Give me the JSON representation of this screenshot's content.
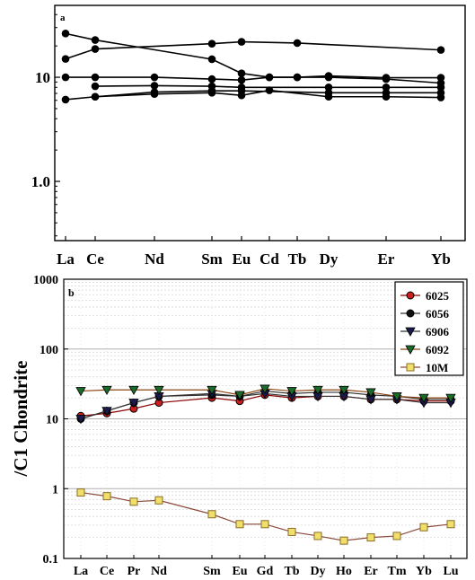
{
  "chart_data": [
    {
      "type": "line",
      "panel_label": "a",
      "categories": [
        "La",
        "Ce",
        "Nd",
        "Sm",
        "Eu",
        "Cd",
        "Tb",
        "Dy",
        "Er",
        "Yb"
      ],
      "y_scale": "log",
      "ylim": [
        0.27,
        49
      ],
      "y_ticks": [
        "10",
        "1.0"
      ],
      "y_tick_values": [
        10,
        1
      ],
      "grid": false,
      "legend": "none",
      "series": [
        {
          "points": [
            [
              "La",
              26.3
            ],
            [
              "Ce",
              22.8
            ],
            [
              "Sm",
              14.9
            ],
            [
              "Eu",
              10.9
            ],
            [
              "Cd",
              10.0
            ],
            [
              "Tb",
              10.0
            ],
            [
              "Dy",
              10.0
            ],
            [
              "Er",
              9.6
            ],
            [
              "Yb",
              8.8
            ]
          ]
        },
        {
          "points": [
            [
              "La",
              15.0
            ],
            [
              "Ce",
              18.7
            ],
            [
              "Sm",
              21.0
            ],
            [
              "Eu",
              21.9
            ],
            [
              "Tb",
              21.3
            ],
            [
              "Yb",
              18.3
            ]
          ]
        },
        {
          "points": [
            [
              "La",
              10.0
            ],
            [
              "Ce",
              10.0
            ],
            [
              "Nd",
              10.0
            ],
            [
              "Sm",
              9.6
            ],
            [
              "Eu",
              9.4
            ],
            [
              "Cd",
              10.0
            ],
            [
              "Tb",
              10.0
            ],
            [
              "Dy",
              10.3
            ],
            [
              "Er",
              9.9
            ],
            [
              "Yb",
              9.9
            ]
          ]
        },
        {
          "points": [
            [
              "Ce",
              8.2
            ],
            [
              "Nd",
              8.3
            ],
            [
              "Sm",
              8.2
            ],
            [
              "Eu",
              8.0
            ],
            [
              "Dy",
              8.0
            ],
            [
              "Er",
              8.0
            ],
            [
              "Yb",
              8.0
            ]
          ]
        },
        {
          "points": [
            [
              "La",
              6.1
            ],
            [
              "Ce",
              6.5
            ],
            [
              "Nd",
              6.9
            ],
            [
              "Sm",
              7.1
            ],
            [
              "Eu",
              6.7
            ],
            [
              "Cd",
              7.5
            ],
            [
              "Dy",
              6.5
            ],
            [
              "Er",
              6.5
            ],
            [
              "Yb",
              6.4
            ]
          ]
        },
        {
          "points": [
            [
              "Ce",
              6.5
            ],
            [
              "Nd",
              7.2
            ],
            [
              "Sm",
              7.4
            ],
            [
              "Eu",
              7.4
            ],
            [
              "Dy",
              7.1
            ],
            [
              "Er",
              7.1
            ],
            [
              "Yb",
              7.1
            ]
          ]
        }
      ]
    },
    {
      "type": "line",
      "panel_label": "b",
      "ylabel": "/C1 Chondrite",
      "categories": [
        "La",
        "Ce",
        "Pr",
        "Nd",
        "Sm",
        "Eu",
        "Gd",
        "Tb",
        "Dy",
        "Ho",
        "Er",
        "Tm",
        "Yb",
        "Lu"
      ],
      "y_scale": "log",
      "ylim": [
        0.1,
        1000
      ],
      "y_ticks": [
        "1000",
        "100",
        "10",
        "1",
        "0.1"
      ],
      "y_tick_values": [
        1000,
        100,
        10,
        1,
        0.1
      ],
      "grid": true,
      "legend": "top-right",
      "series": [
        {
          "name": "6025",
          "color": "#cc1e1e",
          "marker": "circle",
          "line_color": "#8b0000",
          "values": [
            11,
            12,
            14,
            17,
            20,
            18,
            22,
            20,
            21,
            21,
            19,
            19,
            18,
            18
          ]
        },
        {
          "name": "6056",
          "color": "#111111",
          "marker": "circle",
          "line_color": "#333333",
          "values": [
            10,
            13,
            17,
            21,
            22,
            21,
            25,
            23,
            24,
            24,
            22,
            21,
            19,
            19
          ]
        },
        {
          "name": "6906",
          "color": "#1a1a4d",
          "marker": "triangle-down",
          "line_color": "#333333",
          "values": [
            10,
            13,
            17,
            21,
            23,
            21,
            23,
            21,
            21,
            21,
            19,
            19,
            17,
            17
          ]
        },
        {
          "name": "6092",
          "color": "#1a6b2a",
          "marker": "triangle-down",
          "line_color": "#8b4513",
          "values": [
            25,
            26,
            26,
            26,
            26,
            22,
            27,
            25,
            26,
            26,
            24,
            21,
            20,
            20
          ]
        },
        {
          "name": "10M",
          "color": "#f0e06a",
          "marker": "square",
          "line_color": "#8b4a3a",
          "values": [
            0.88,
            0.78,
            0.65,
            0.68,
            0.43,
            0.31,
            0.31,
            0.24,
            0.21,
            0.18,
            0.2,
            0.21,
            0.28,
            0.31
          ]
        }
      ]
    }
  ]
}
